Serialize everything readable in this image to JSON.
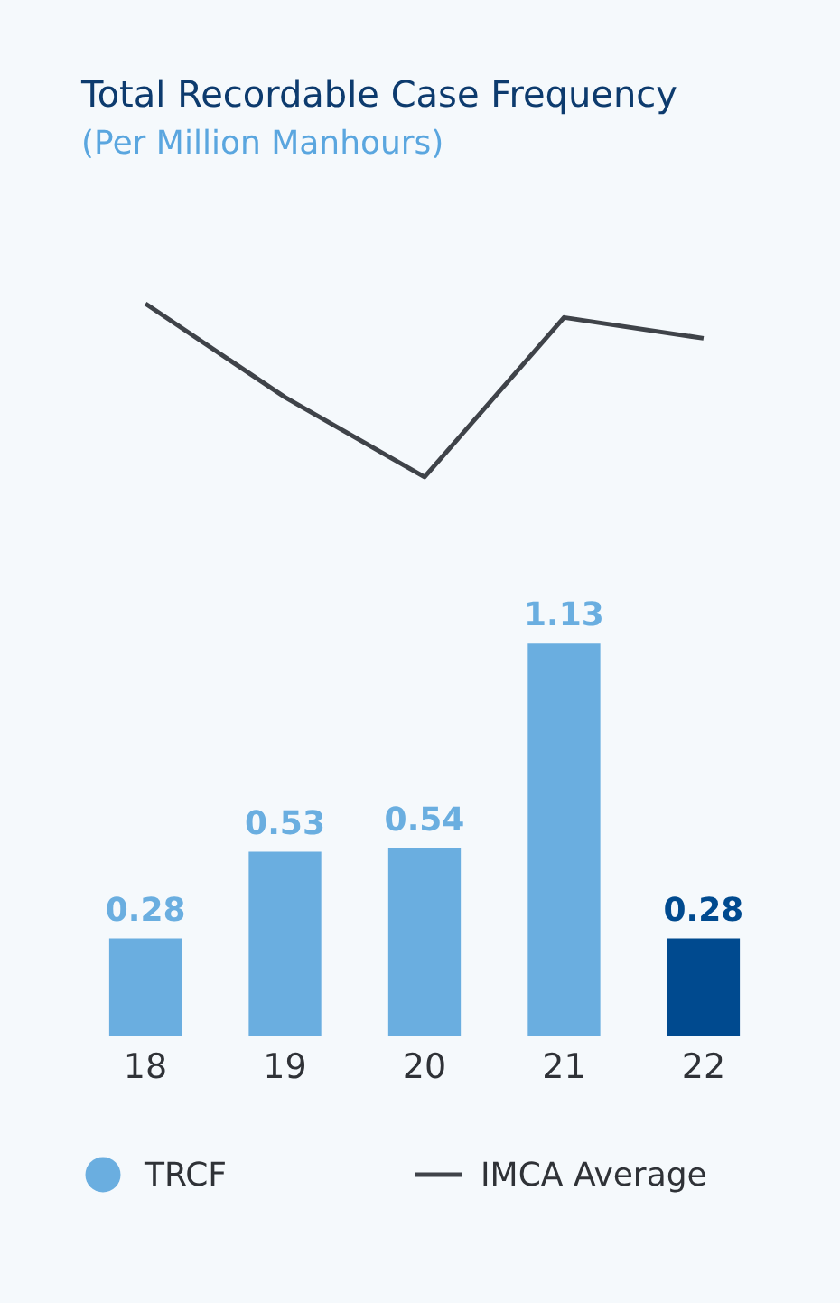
{
  "chart_data": {
    "type": "bar",
    "title": "Total Recordable Case Frequency",
    "subtitle": "(Per Million Manhours)",
    "categories": [
      "18",
      "19",
      "20",
      "21",
      "22"
    ],
    "series": [
      {
        "name": "TRCF",
        "color": "#6aaee0",
        "colors": [
          "#6aaee0",
          "#6aaee0",
          "#6aaee0",
          "#6aaee0",
          "#004a8f"
        ],
        "values": [
          0.28,
          0.53,
          0.54,
          1.13,
          0.28
        ],
        "value_labels": [
          "0.28",
          "0.53",
          "0.54",
          "1.13",
          "0.28"
        ]
      },
      {
        "name": "IMCA Average",
        "type": "line",
        "color": "#3f4349",
        "values": [
          2.11,
          1.84,
          1.61,
          2.07,
          2.01
        ]
      }
    ],
    "tick_labels": "x",
    "legend": "bottom",
    "grid": false
  }
}
